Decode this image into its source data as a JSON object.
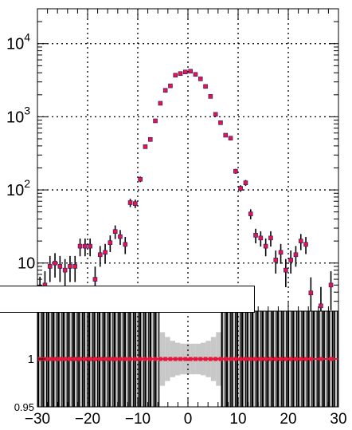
{
  "chart_data": [
    {
      "type": "scatter",
      "panel": "main",
      "title": "",
      "xlabel": "",
      "ylabel": "",
      "y_scale": "log",
      "xlim": [
        -30,
        30
      ],
      "ylim": [
        2.2,
        30000
      ],
      "grid": true,
      "grid_style": "dotted",
      "marker_color": "#e8163c",
      "errorbar_color": "#000000",
      "x_ticks": [
        -30,
        -20,
        -10,
        0,
        10,
        20,
        30
      ],
      "y_tick_labels": [
        {
          "value": 10,
          "base": "10",
          "exp": ""
        },
        {
          "value": 100,
          "base": "10",
          "exp": "2"
        },
        {
          "value": 1000,
          "base": "10",
          "exp": "3"
        },
        {
          "value": 10000,
          "base": "10",
          "exp": "4"
        }
      ],
      "series": [
        {
          "x": [
            -29.5,
            -28.5,
            -27.5,
            -26.5,
            -25.5,
            -24.5,
            -23.5,
            -22.5,
            -21.5,
            -20.5,
            -19.5,
            -18.5,
            -17.5,
            -16.5,
            -15.5,
            -14.5,
            -13.5,
            -12.5,
            -11.5,
            -10.5,
            -9.5,
            -8.5,
            -7.5,
            -6.5,
            -5.5,
            -4.5,
            -3.5,
            -2.5,
            -1.5,
            -0.5,
            0.5,
            1.5,
            2.5,
            3.5,
            4.5,
            5.5,
            6.5,
            7.5,
            8.5,
            9.5,
            10.5,
            11.5,
            12.5,
            13.5,
            14.5,
            15.5,
            16.5,
            17.5,
            18.5,
            19.5,
            20.5,
            21.5,
            22.5,
            23.5,
            24.5,
            26.5,
            28.5
          ],
          "y": [
            4,
            5,
            9,
            10,
            9,
            8,
            9,
            9,
            17,
            17,
            17,
            6,
            13,
            14,
            19,
            27,
            23,
            18,
            67,
            65,
            140,
            390,
            490,
            880,
            1530,
            2300,
            2650,
            3700,
            3900,
            4100,
            4200,
            3800,
            3300,
            2600,
            1900,
            1080,
            830,
            560,
            510,
            180,
            105,
            125,
            47,
            24,
            22,
            17,
            22,
            11,
            14,
            8,
            11,
            13,
            20,
            18,
            3.9,
            2.6,
            5
          ]
        }
      ]
    },
    {
      "type": "scatter",
      "panel": "ratio",
      "xlabel": "",
      "ylabel": "",
      "xlim": [
        -30,
        30
      ],
      "ylim": [
        0.95,
        1.05
      ],
      "y_tick_labels": [
        {
          "value": 0.95,
          "text": "0.95"
        },
        {
          "value": 1,
          "text": "1"
        }
      ],
      "ratio_value": 1,
      "band_color": "#c8c8c8",
      "marker_color": "#e8163c",
      "band_halfwidth": [
        0.05,
        0.05,
        0.05,
        0.05,
        0.05,
        0.05,
        0.05,
        0.05,
        0.05,
        0.05,
        0.05,
        0.05,
        0.05,
        0.05,
        0.05,
        0.05,
        0.05,
        0.05,
        0.05,
        0.05,
        0.05,
        0.05,
        0.05,
        0.05,
        0.028,
        0.023,
        0.019,
        0.017,
        0.016,
        0.016,
        0.016,
        0.016,
        0.017,
        0.019,
        0.023,
        0.028,
        0.05,
        0.05,
        0.05,
        0.05,
        0.05,
        0.05,
        0.05,
        0.05,
        0.05,
        0.05,
        0.05,
        0.05,
        0.05,
        0.05,
        0.05,
        0.05,
        0.05,
        0.05,
        0.05,
        0.05,
        0.05,
        0.05,
        0.05
      ]
    }
  ]
}
